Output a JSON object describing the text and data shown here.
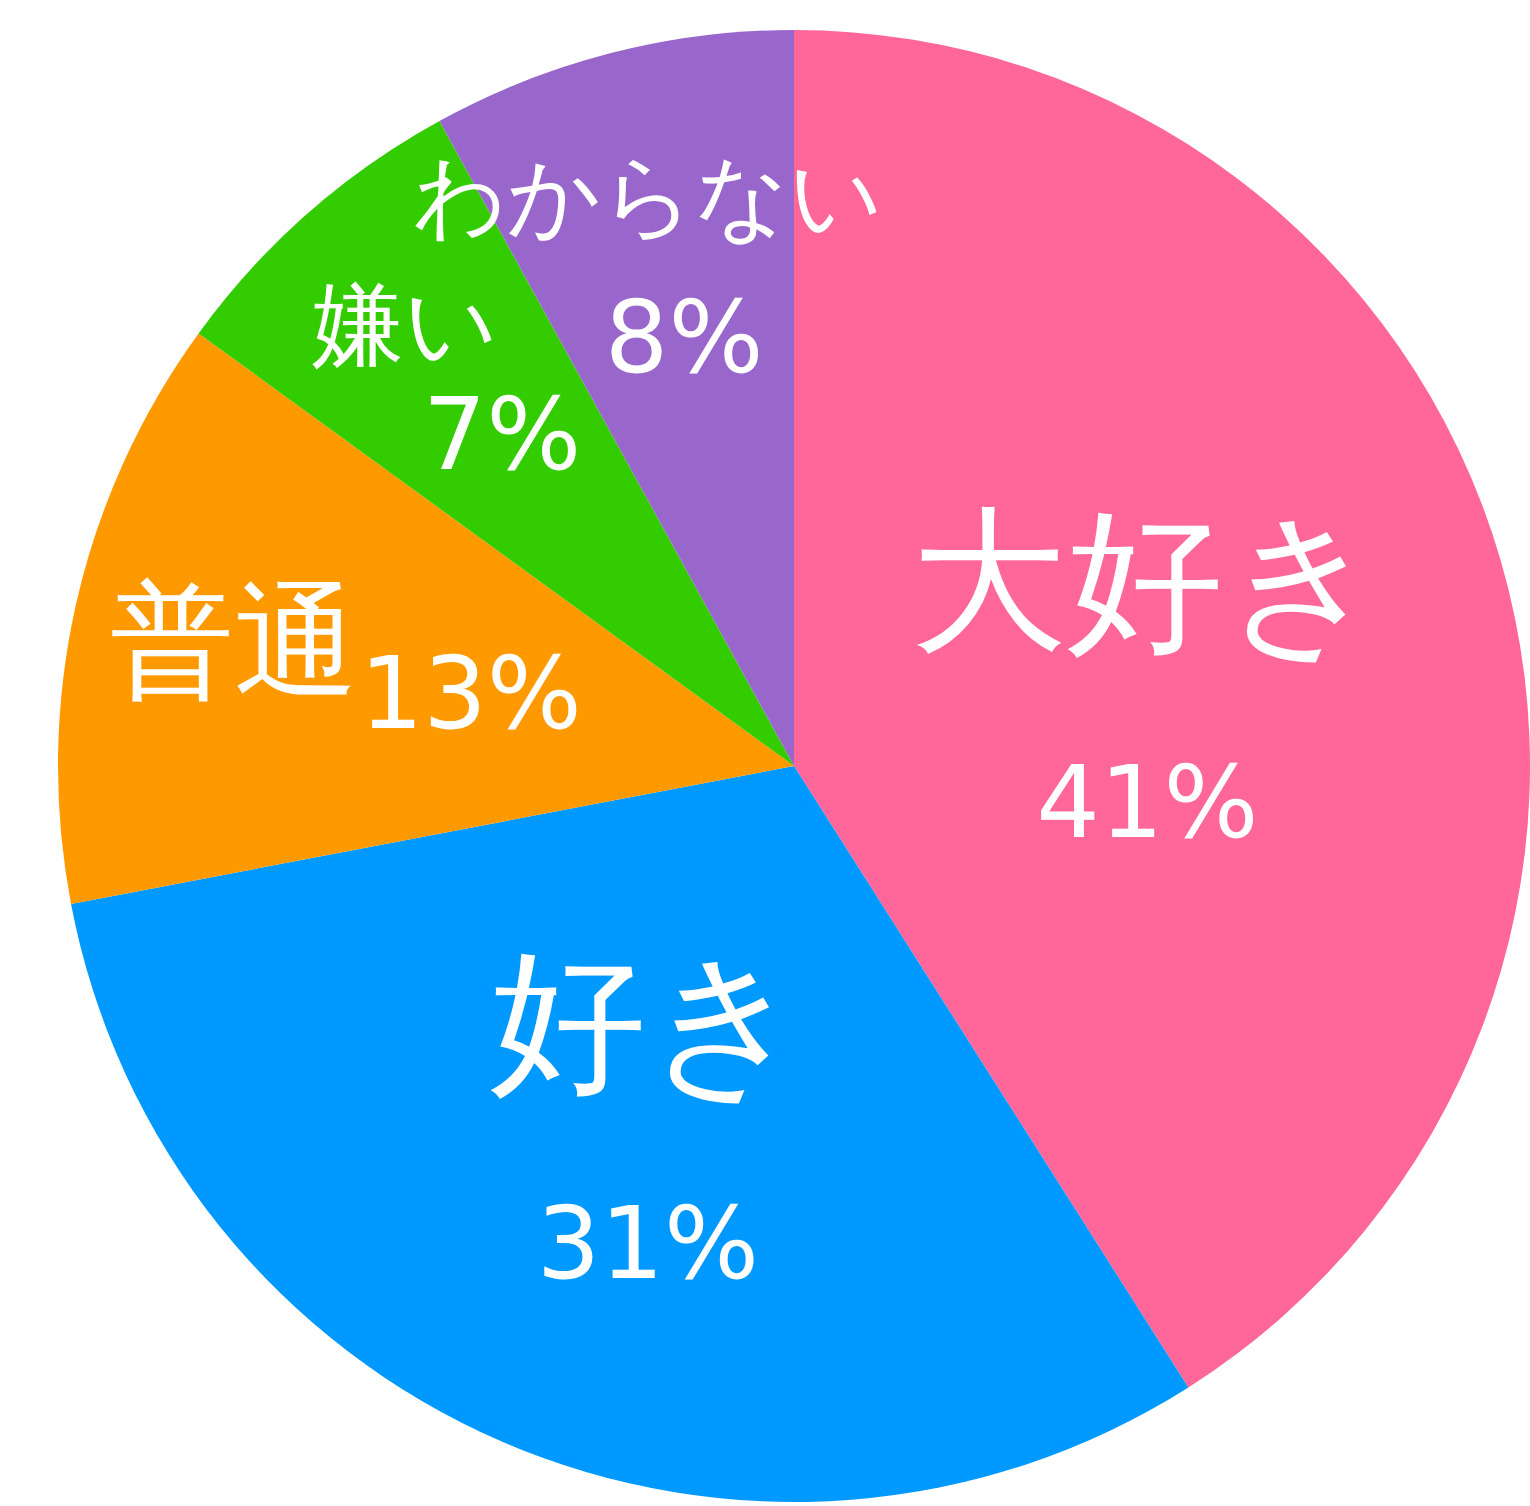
{
  "chart_data": {
    "type": "pie",
    "categories": [
      "大好き",
      "好き",
      "普通",
      "嫌い",
      "わからない"
    ],
    "values": [
      41,
      31,
      13,
      7,
      8
    ],
    "colors": [
      "#ff6699",
      "#0099ff",
      "#ff9900",
      "#33cc00",
      "#9966cc"
    ],
    "value_labels": [
      "41%",
      "31%",
      "13%",
      "7%",
      "8%"
    ]
  }
}
